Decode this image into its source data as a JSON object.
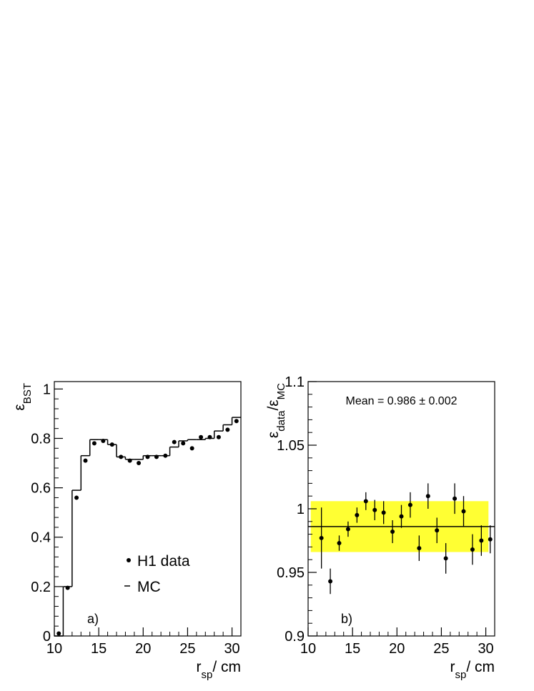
{
  "chart_data": [
    {
      "type": "histogram",
      "xlabel": [
        {
          "text": "r"
        },
        {
          "text": "sp",
          "sub": true
        },
        {
          "text": "/ cm"
        }
      ],
      "ylabel": [
        {
          "text": "ε"
        },
        {
          "text": "BST",
          "sub": true
        }
      ],
      "annotation": "a)",
      "xlim": [
        10,
        31
      ],
      "xticks": [
        10,
        15,
        20,
        25,
        30
      ],
      "ylim": [
        0,
        1.03
      ],
      "yticks": [
        0,
        0.2,
        0.4,
        0.6,
        0.8,
        1
      ],
      "legend": "lower center",
      "bins": [
        10,
        11,
        12,
        13,
        14,
        15,
        16,
        17,
        18,
        19,
        20,
        21,
        22,
        23,
        24,
        25,
        26,
        27,
        28,
        29,
        30,
        31
      ],
      "series": [
        {
          "name": "H1 data",
          "style": "markers",
          "color": "#000000",
          "values": [
            0.01,
            0.195,
            0.56,
            0.71,
            0.78,
            0.79,
            0.775,
            0.725,
            0.71,
            0.7,
            0.725,
            0.725,
            0.73,
            0.785,
            0.78,
            0.76,
            0.805,
            0.805,
            0.805,
            0.835,
            0.87
          ]
        },
        {
          "name": "MC",
          "style": "step",
          "color": "#000000",
          "values": [
            0,
            0.2,
            0.59,
            0.73,
            0.795,
            0.795,
            0.775,
            0.725,
            0.715,
            0.715,
            0.73,
            0.73,
            0.73,
            0.765,
            0.79,
            0.795,
            0.795,
            0.8,
            0.83,
            0.855,
            0.885
          ]
        }
      ]
    },
    {
      "type": "errorbar",
      "xlabel": [
        {
          "text": "r"
        },
        {
          "text": "sp",
          "sub": true
        },
        {
          "text": "/ cm"
        }
      ],
      "ylabel": [
        {
          "text": "ε"
        },
        {
          "text": "data",
          "sub": true
        },
        {
          "text": "/ε"
        },
        {
          "text": "MC",
          "sub": true
        }
      ],
      "annotation": "b)",
      "mean_label": "Mean = 0.986 ± 0.002",
      "mean": 0.986,
      "band": {
        "xlim": [
          10.3,
          30.3
        ],
        "ylim": [
          0.966,
          1.006
        ],
        "color": "#ffff33"
      },
      "xlim": [
        10,
        31
      ],
      "xticks": [
        10,
        15,
        20,
        25,
        30
      ],
      "ylim": [
        0.9,
        1.1
      ],
      "yticks": [
        0.9,
        0.95,
        1,
        1.05,
        1.1
      ],
      "x": [
        11.5,
        12.5,
        13.5,
        14.5,
        15.5,
        16.5,
        17.5,
        18.5,
        19.5,
        20.5,
        21.5,
        22.5,
        23.5,
        24.5,
        25.5,
        26.5,
        27.5,
        28.5,
        29.5,
        30.5
      ],
      "values": [
        0.977,
        0.943,
        0.973,
        0.984,
        0.995,
        1.006,
        0.999,
        0.997,
        0.982,
        0.994,
        1.003,
        0.969,
        1.01,
        0.983,
        0.961,
        1.008,
        0.998,
        0.968,
        0.975,
        0.976
      ],
      "errors": [
        0.024,
        0.01,
        0.006,
        0.006,
        0.006,
        0.007,
        0.008,
        0.009,
        0.009,
        0.009,
        0.01,
        0.01,
        0.01,
        0.01,
        0.012,
        0.012,
        0.012,
        0.012,
        0.012,
        0.011
      ],
      "color": "#000000"
    }
  ]
}
